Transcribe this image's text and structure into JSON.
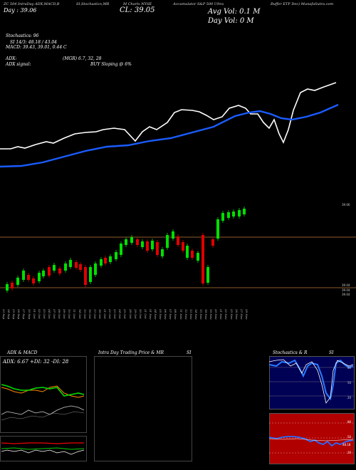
{
  "header": {
    "line1": "ZC 504 IntraDay ADX,MACD,B ... SI,Stochastics,MR ... M Charts NYSE ... Accumulator S&P 500 Ultra ... Buffer ETF Dec) MunafaSutra.com",
    "seg_a": "ZC 504 IntraDay ADX,MACD,B",
    "seg_b": "SI,Stochastics,MR",
    "seg_c": "M Charts NYSE",
    "seg_d": "Accumulator S&P 500 Ultra",
    "seg_e": "Buffer ETF Dec) MunafaSutra.com",
    "day_label": "Day  : 39.06",
    "cl_label": "CL: 39.05",
    "avg_vol": "Avg Vol: 0.1 M",
    "day_vol": "Day Vol: 0  M",
    "stochastics": "Stochastics: 96",
    "si": "SI 14/3: 48.18 / 43.04",
    "macd": "MACD: 39.43, 39.01, 0.44  C",
    "adx": "ADX:",
    "adx_vals": "(MGR) 6.7,  32,  28",
    "adx_signal": "ADX  signal:",
    "buy": "BUY Sloping @ 6%"
  },
  "price_axis": {
    "top_label": "39.06",
    "low_label_1": "39.04",
    "low_label_2": "39.04",
    "low_label_3": "39.04"
  },
  "date_labels": [
    "23 Sep",
    "24 Sep",
    "25 Sep",
    "26 Sep",
    "27 Sep",
    "30 Sep",
    "01 Oct",
    "02 Oct",
    "03 Oct",
    "04 Oct",
    "07 Oct",
    "08 Oct",
    "09 Oct",
    "10 Oct",
    "11 Oct",
    "14 Oct",
    "15 Oct",
    "16 Oct",
    "17 Oct",
    "18 Oct",
    "21 Oct",
    "22 Oct",
    "23 Oct",
    "24 Oct",
    "25 Oct",
    "28 Oct",
    "29 Oct",
    "30 Oct",
    "31 Oct",
    "01 Nov",
    "04 Nov",
    "05 Nov",
    "06 Nov",
    "07 Nov",
    "08 Nov",
    "11 Nov",
    "12 Nov",
    "13 Nov",
    "14 Nov",
    "15 Nov",
    "18 Nov",
    "19 Nov",
    "20 Nov",
    "21 Nov",
    "22 Nov",
    "25 Nov",
    "26 Nov",
    "27 Nov",
    "29 Nov",
    "02 Dec",
    "03 Dec",
    "04 Dec"
  ],
  "panels": {
    "adx_title": "ADX  & MACD",
    "adx_legend": "ADX: 6.67 +DI: 32 -DI: 28",
    "intraday_title": "Intra  Day Trading Price  & MR",
    "intraday_si": "SI",
    "stoch_title": "Stochastics & R",
    "stoch_si": "SI",
    "stoch_levels": [
      "80",
      "50",
      "20"
    ],
    "rsi_levels": [
      "80",
      "50",
      "20"
    ],
    "rsi_value": "48.18"
  },
  "colors": {
    "background": "#000000",
    "green_candle": "#00e000",
    "red_candle": "#e00000",
    "ma_blue": "#1a5cff",
    "price_white": "#ffffff",
    "level_line": "#8b5a2b",
    "stoch_bg": "#000055",
    "rsi_bg": "#b00000"
  }
}
